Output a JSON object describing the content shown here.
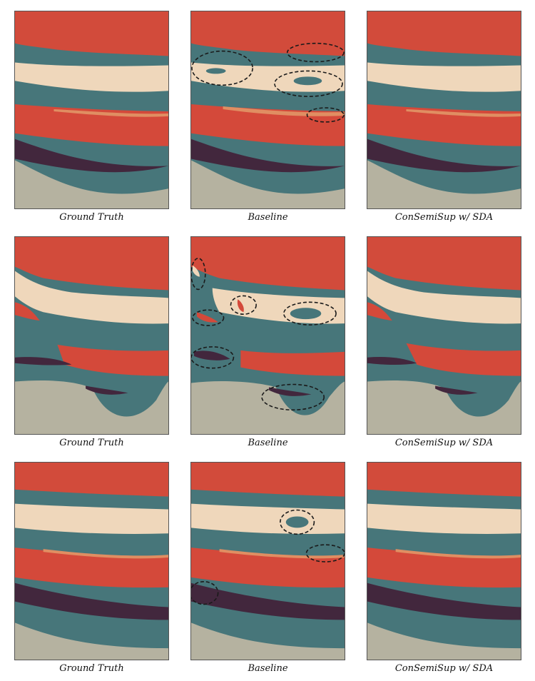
{
  "colors": {
    "top_red": "#d24b3b",
    "cream": "#efd7bb",
    "teal": "#47767a",
    "red_band": "#d4493a",
    "salmon": "#e08e62",
    "purple": "#42273d",
    "gray": "#b5b2a0",
    "dash": "#1a1a1a"
  },
  "captions": {
    "ground_truth": "Ground Truth",
    "baseline": "Baseline",
    "ours": "ConSemiSup w/ SDA"
  },
  "rows": [
    {
      "variant": "a",
      "panels": [
        {
          "caption_key": "ground_truth",
          "highlights": 0
        },
        {
          "caption_key": "baseline",
          "highlights": 4
        },
        {
          "caption_key": "ours",
          "highlights": 0
        }
      ]
    },
    {
      "variant": "b",
      "panels": [
        {
          "caption_key": "ground_truth",
          "highlights": 0
        },
        {
          "caption_key": "baseline",
          "highlights": 7
        },
        {
          "caption_key": "ours",
          "highlights": 0
        }
      ]
    },
    {
      "variant": "c",
      "panels": [
        {
          "caption_key": "ground_truth",
          "highlights": 0
        },
        {
          "caption_key": "baseline",
          "highlights": 3
        },
        {
          "caption_key": "ours",
          "highlights": 0
        }
      ]
    }
  ]
}
